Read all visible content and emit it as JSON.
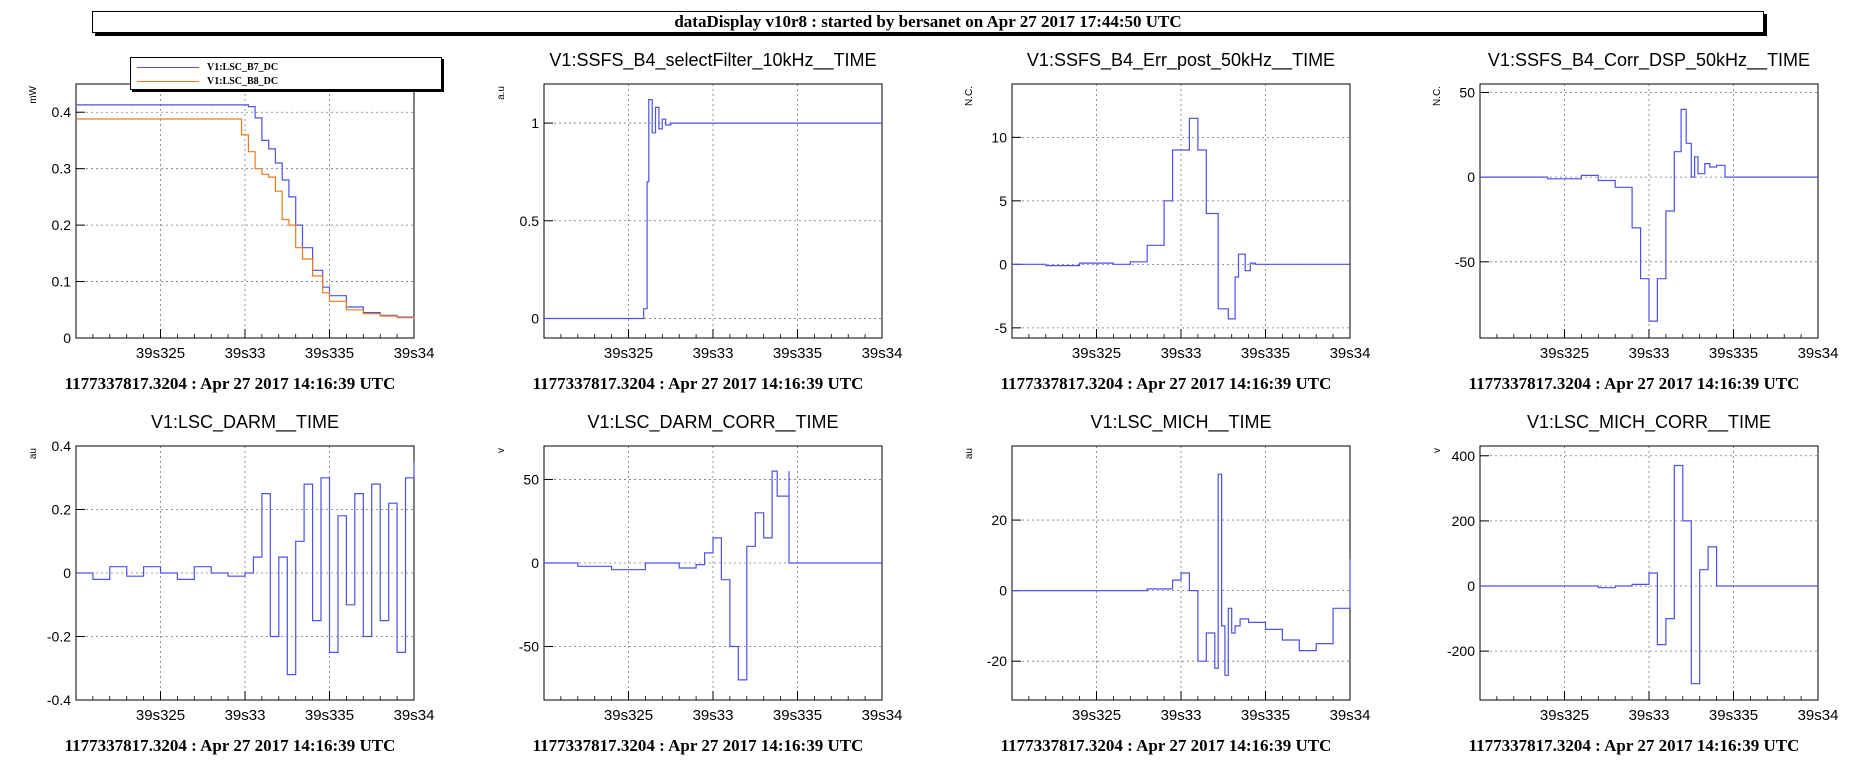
{
  "banner": "dataDisplay v10r8 : started by bersanet on Apr 27 2017 17:44:50 UTC",
  "colors": {
    "blue": "#4a52e8",
    "orange": "#ec7a1c"
  },
  "footer": "1177337817.3204 : Apr 27 2017 14:16:39 UTC",
  "chart_data": [
    {
      "type": "line",
      "title": "",
      "ylabel": "mW",
      "xlim": [
        39.32,
        39.34
      ],
      "ylim": [
        0,
        0.45
      ],
      "xticks": [
        39.325,
        39.33,
        39.335,
        39.34
      ],
      "xticklabels": [
        "39s325",
        "39s33",
        "39s335",
        "39s34"
      ],
      "yticks": [
        0,
        0.1,
        0.2,
        0.3,
        0.4
      ],
      "yticklabels": [
        "0",
        "0.1",
        "0.2",
        "0.3",
        "0.4"
      ],
      "grid": true,
      "legend": "top-left",
      "series": [
        {
          "name": "V1:LSC_B7_DC",
          "color": "#4a52e8",
          "x": [
            39.32,
            39.329,
            39.3302,
            39.3306,
            39.331,
            39.3314,
            39.3318,
            39.3322,
            39.3326,
            39.333,
            39.3334,
            39.334,
            39.3346,
            39.335,
            39.336,
            39.337,
            39.338,
            39.339,
            39.34
          ],
          "y": [
            0.413,
            0.413,
            0.41,
            0.39,
            0.35,
            0.335,
            0.31,
            0.28,
            0.25,
            0.2,
            0.16,
            0.12,
            0.09,
            0.075,
            0.055,
            0.045,
            0.04,
            0.037,
            0.035
          ]
        },
        {
          "name": "V1:LSC_B8_DC",
          "color": "#ec7a1c",
          "x": [
            39.32,
            39.3293,
            39.3298,
            39.3302,
            39.3306,
            39.331,
            39.3314,
            39.3318,
            39.3322,
            39.3326,
            39.333,
            39.3334,
            39.334,
            39.3346,
            39.335,
            39.336,
            39.337,
            39.338,
            39.339,
            39.34
          ],
          "y": [
            0.388,
            0.388,
            0.36,
            0.33,
            0.3,
            0.29,
            0.285,
            0.26,
            0.21,
            0.2,
            0.16,
            0.14,
            0.11,
            0.08,
            0.065,
            0.05,
            0.043,
            0.039,
            0.036,
            0.034
          ]
        }
      ]
    },
    {
      "type": "line",
      "title": "V1:SSFS_B4_selectFilter_10kHz__TIME",
      "ylabel": "a.u",
      "xlim": [
        39.32,
        39.34
      ],
      "ylim": [
        -0.1,
        1.2
      ],
      "xticks": [
        39.325,
        39.33,
        39.335,
        39.34
      ],
      "xticklabels": [
        "39s325",
        "39s33",
        "39s335",
        "39s34"
      ],
      "yticks": [
        0,
        0.5,
        1
      ],
      "yticklabels": [
        "0",
        "0.5",
        "1"
      ],
      "grid": true,
      "series": [
        {
          "color": "#4a52e8",
          "x": [
            39.32,
            39.3258,
            39.3259,
            39.3261,
            39.3262,
            39.3264,
            39.3266,
            39.3268,
            39.327,
            39.3272,
            39.3275,
            39.34
          ],
          "y": [
            0,
            0,
            0.05,
            0.7,
            1.12,
            0.95,
            1.08,
            0.97,
            1.02,
            0.99,
            1.0,
            1.0
          ]
        }
      ]
    },
    {
      "type": "line",
      "title": "V1:SSFS_B4_Err_post_50kHz__TIME",
      "ylabel": "N.C.",
      "xlim": [
        39.32,
        39.34
      ],
      "ylim": [
        -5.8,
        14.2
      ],
      "xticks": [
        39.325,
        39.33,
        39.335,
        39.34
      ],
      "xticklabels": [
        "39s325",
        "39s33",
        "39s335",
        "39s34"
      ],
      "yticks": [
        -5,
        0,
        5,
        10
      ],
      "yticklabels": [
        "-5",
        "0",
        "5",
        "10"
      ],
      "grid": true,
      "series": [
        {
          "color": "#4a52e8",
          "x": [
            39.32,
            39.322,
            39.324,
            39.326,
            39.327,
            39.328,
            39.329,
            39.3295,
            39.3305,
            39.331,
            39.3315,
            39.3322,
            39.3328,
            39.3332,
            39.3334,
            39.3338,
            39.3341,
            39.3344,
            39.335,
            39.34
          ],
          "y": [
            0,
            -0.1,
            0.1,
            0,
            0.2,
            1.5,
            5,
            9,
            11.5,
            9,
            4,
            -3.5,
            -4.3,
            -1,
            0.8,
            -0.5,
            0.1,
            0,
            0,
            0
          ]
        }
      ]
    },
    {
      "type": "line",
      "title": "V1:SSFS_B4_Corr_DSP_50kHz__TIME",
      "ylabel": "N.C.",
      "xlim": [
        39.32,
        39.34
      ],
      "ylim": [
        -95,
        55
      ],
      "xticks": [
        39.325,
        39.33,
        39.335,
        39.34
      ],
      "xticklabels": [
        "39s325",
        "39s33",
        "39s335",
        "39s34"
      ],
      "yticks": [
        -50,
        0,
        50
      ],
      "yticklabels": [
        "-50",
        "0",
        "50"
      ],
      "grid": true,
      "series": [
        {
          "color": "#4a52e8",
          "x": [
            39.32,
            39.324,
            39.326,
            39.327,
            39.328,
            39.329,
            39.3295,
            39.33,
            39.3305,
            39.331,
            39.3315,
            39.3319,
            39.3322,
            39.3325,
            39.3327,
            39.3329,
            39.3333,
            39.3336,
            39.334,
            39.3345,
            39.3345,
            39.34
          ],
          "y": [
            0,
            -1,
            1,
            -2,
            -6,
            -30,
            -60,
            -85,
            -60,
            -20,
            15,
            40,
            20,
            0,
            12,
            2,
            8,
            6,
            7,
            6,
            0,
            0
          ]
        }
      ]
    },
    {
      "type": "line",
      "title": "V1:LSC_DARM__TIME",
      "ylabel": "au",
      "xlim": [
        39.32,
        39.34
      ],
      "ylim": [
        -0.4,
        0.4
      ],
      "xticks": [
        39.325,
        39.33,
        39.335,
        39.34
      ],
      "xticklabels": [
        "39s325",
        "39s33",
        "39s335",
        "39s34"
      ],
      "yticks": [
        -0.4,
        -0.2,
        0,
        0.2,
        0.4
      ],
      "yticklabels": [
        "-0.4",
        "-0.2",
        "0",
        "0.2",
        "0.4"
      ],
      "grid": true,
      "series": [
        {
          "color": "#4a52e8",
          "x": [
            39.32,
            39.321,
            39.322,
            39.323,
            39.324,
            39.325,
            39.326,
            39.327,
            39.328,
            39.329,
            39.33,
            39.3305,
            39.331,
            39.3315,
            39.332,
            39.3325,
            39.333,
            39.3335,
            39.334,
            39.3345,
            39.335,
            39.3355,
            39.336,
            39.3365,
            39.337,
            39.3375,
            39.338,
            39.3385,
            39.339,
            39.3395,
            39.34
          ],
          "y": [
            0,
            -0.02,
            0.02,
            -0.01,
            0.02,
            0,
            -0.02,
            0.02,
            0,
            -0.01,
            0,
            0.05,
            0.25,
            -0.2,
            0.05,
            -0.32,
            0.1,
            0.28,
            -0.15,
            0.3,
            -0.25,
            0.18,
            -0.1,
            0.25,
            -0.2,
            0.28,
            -0.15,
            0.22,
            -0.25,
            0.3,
            0.35
          ]
        }
      ]
    },
    {
      "type": "line",
      "title": "V1:LSC_DARM_CORR__TIME",
      "ylabel": "v",
      "xlim": [
        39.32,
        39.34
      ],
      "ylim": [
        -82,
        70
      ],
      "xticks": [
        39.325,
        39.33,
        39.335,
        39.34
      ],
      "xticklabels": [
        "39s325",
        "39s33",
        "39s335",
        "39s34"
      ],
      "yticks": [
        -50,
        0,
        50
      ],
      "yticklabels": [
        "-50",
        "0",
        "50"
      ],
      "grid": true,
      "series": [
        {
          "color": "#4a52e8",
          "x": [
            39.32,
            39.322,
            39.324,
            39.326,
            39.328,
            39.329,
            39.3295,
            39.33,
            39.3305,
            39.331,
            39.3315,
            39.332,
            39.3325,
            39.333,
            39.3335,
            39.3338,
            39.3345,
            39.3345,
            39.34
          ],
          "y": [
            0,
            -2,
            -4,
            0,
            -3,
            -1,
            6,
            15,
            -10,
            -50,
            -70,
            10,
            30,
            15,
            55,
            40,
            55,
            0,
            0
          ]
        }
      ]
    },
    {
      "type": "line",
      "title": "V1:LSC_MICH__TIME",
      "ylabel": "au",
      "xlim": [
        39.32,
        39.34
      ],
      "ylim": [
        -31,
        41
      ],
      "xticks": [
        39.325,
        39.33,
        39.335,
        39.34
      ],
      "xticklabels": [
        "39s325",
        "39s33",
        "39s335",
        "39s34"
      ],
      "yticks": [
        -20,
        0,
        20
      ],
      "yticklabels": [
        "-20",
        "0",
        "20"
      ],
      "grid": true,
      "series": [
        {
          "color": "#4a52e8",
          "x": [
            39.32,
            39.325,
            39.328,
            39.3295,
            39.33,
            39.3305,
            39.331,
            39.3315,
            39.332,
            39.3322,
            39.3324,
            39.3326,
            39.3328,
            39.333,
            39.3332,
            39.3335,
            39.334,
            39.335,
            39.336,
            39.337,
            39.338,
            39.339,
            39.34
          ],
          "y": [
            0,
            0,
            0.5,
            3,
            5,
            0,
            -20,
            -12,
            -22,
            33,
            -10,
            -24,
            -5,
            -12,
            -10,
            -8,
            -9,
            -11,
            -14,
            -17,
            -15,
            -5,
            9
          ]
        }
      ]
    },
    {
      "type": "line",
      "title": "V1:LSC_MICH_CORR__TIME",
      "ylabel": "v",
      "xlim": [
        39.32,
        39.34
      ],
      "ylim": [
        -350,
        430
      ],
      "xticks": [
        39.325,
        39.33,
        39.335,
        39.34
      ],
      "xticklabels": [
        "39s325",
        "39s33",
        "39s335",
        "39s34"
      ],
      "yticks": [
        -200,
        0,
        200,
        400
      ],
      "yticklabels": [
        "-200",
        "0",
        "200",
        "400"
      ],
      "grid": true,
      "series": [
        {
          "color": "#4a52e8",
          "x": [
            39.32,
            39.325,
            39.327,
            39.328,
            39.329,
            39.33,
            39.3305,
            39.331,
            39.3315,
            39.332,
            39.3325,
            39.333,
            39.3335,
            39.334,
            39.334,
            39.34
          ],
          "y": [
            0,
            0,
            -5,
            0,
            5,
            40,
            -180,
            -100,
            370,
            200,
            -300,
            50,
            120,
            110,
            0,
            0
          ]
        }
      ]
    }
  ]
}
